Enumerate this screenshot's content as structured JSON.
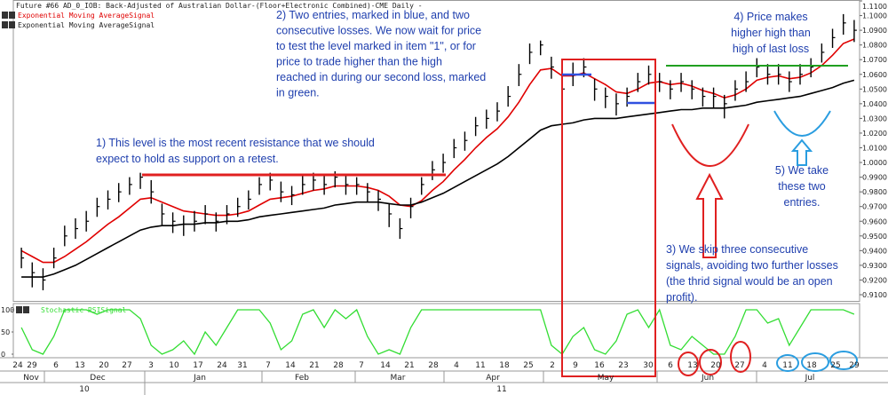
{
  "chart_data": [
    {
      "type": "ohlc",
      "title": "Future #66 AD_0_IOB: Back-Adjusted of Australian Dollar-(Floor+Electronic Combined)-CME Daily -",
      "color": "#000000",
      "high": [
        0.942,
        0.932,
        0.928,
        0.942,
        0.957,
        0.962,
        0.967,
        0.976,
        0.981,
        0.986,
        0.99,
        0.993,
        0.988,
        0.972,
        0.966,
        0.964,
        0.967,
        0.971,
        0.966,
        0.971,
        0.976,
        0.981,
        0.99,
        0.993,
        0.987,
        0.984,
        0.991,
        0.993,
        0.991,
        0.994,
        0.991,
        0.99,
        0.986,
        0.981,
        0.972,
        0.962,
        0.976,
        0.99,
        1.001,
        1.006,
        1.016,
        1.021,
        1.031,
        1.036,
        1.041,
        1.052,
        1.067,
        1.081,
        1.083,
        1.072,
        1.058,
        1.068,
        1.071,
        1.057,
        1.051,
        1.047,
        1.051,
        1.061,
        1.066,
        1.061,
        1.056,
        1.061,
        1.056,
        1.051,
        1.051,
        1.046,
        1.056,
        1.062,
        1.071,
        1.067,
        1.067,
        1.062,
        1.067,
        1.071,
        1.081,
        1.091,
        1.101,
        1.097
      ],
      "low": [
        0.928,
        0.915,
        0.913,
        0.928,
        0.943,
        0.948,
        0.953,
        0.963,
        0.968,
        0.973,
        0.978,
        0.982,
        0.972,
        0.957,
        0.952,
        0.95,
        0.953,
        0.958,
        0.953,
        0.958,
        0.963,
        0.968,
        0.978,
        0.981,
        0.973,
        0.971,
        0.978,
        0.981,
        0.978,
        0.983,
        0.978,
        0.978,
        0.973,
        0.967,
        0.956,
        0.948,
        0.962,
        0.978,
        0.988,
        0.993,
        1.003,
        1.008,
        1.018,
        1.023,
        1.028,
        1.038,
        1.052,
        1.067,
        1.073,
        1.057,
        1.042,
        1.052,
        1.058,
        1.042,
        1.037,
        1.032,
        1.038,
        1.048,
        1.053,
        1.048,
        1.043,
        1.048,
        1.043,
        1.038,
        1.037,
        1.03,
        1.042,
        1.048,
        1.058,
        1.053,
        1.053,
        1.048,
        1.053,
        1.058,
        1.068,
        1.078,
        1.087,
        1.082
      ],
      "close": [
        0.935,
        0.925,
        0.92,
        0.935,
        0.95,
        0.955,
        0.96,
        0.97,
        0.975,
        0.98,
        0.985,
        0.99,
        0.98,
        0.965,
        0.96,
        0.958,
        0.96,
        0.965,
        0.96,
        0.965,
        0.97,
        0.975,
        0.985,
        0.988,
        0.98,
        0.978,
        0.985,
        0.988,
        0.985,
        0.99,
        0.985,
        0.985,
        0.98,
        0.975,
        0.965,
        0.955,
        0.97,
        0.985,
        0.995,
        1.0,
        1.01,
        1.015,
        1.025,
        1.03,
        1.035,
        1.045,
        1.06,
        1.075,
        1.08,
        1.065,
        1.05,
        1.06,
        1.065,
        1.05,
        1.045,
        1.04,
        1.045,
        1.055,
        1.06,
        1.055,
        1.05,
        1.055,
        1.05,
        1.045,
        1.045,
        1.04,
        1.05,
        1.055,
        1.065,
        1.06,
        1.06,
        1.055,
        1.06,
        1.065,
        1.075,
        1.085,
        1.095,
        1.09
      ],
      "series": [
        {
          "name": "Exponential Moving AverageSignal",
          "color": "#e00000",
          "values": [
            0.94,
            0.936,
            0.932,
            0.932,
            0.936,
            0.941,
            0.946,
            0.952,
            0.958,
            0.963,
            0.969,
            0.975,
            0.976,
            0.973,
            0.97,
            0.967,
            0.966,
            0.965,
            0.964,
            0.964,
            0.965,
            0.967,
            0.971,
            0.975,
            0.976,
            0.977,
            0.979,
            0.981,
            0.982,
            0.984,
            0.984,
            0.984,
            0.983,
            0.981,
            0.977,
            0.971,
            0.97,
            0.974,
            0.981,
            0.987,
            0.995,
            1.002,
            1.01,
            1.017,
            1.023,
            1.031,
            1.041,
            1.053,
            1.063,
            1.064,
            1.059,
            1.059,
            1.061,
            1.057,
            1.053,
            1.048,
            1.047,
            1.05,
            1.054,
            1.055,
            1.053,
            1.054,
            1.052,
            1.049,
            1.047,
            1.044,
            1.046,
            1.05,
            1.056,
            1.058,
            1.059,
            1.057,
            1.058,
            1.061,
            1.066,
            1.073,
            1.081,
            1.084
          ]
        },
        {
          "name": "Exponential Moving AverageSignal",
          "color": "#000000",
          "values": [
            0.922,
            0.922,
            0.922,
            0.924,
            0.927,
            0.93,
            0.934,
            0.938,
            0.942,
            0.946,
            0.95,
            0.954,
            0.956,
            0.957,
            0.957,
            0.958,
            0.958,
            0.959,
            0.959,
            0.96,
            0.96,
            0.961,
            0.963,
            0.964,
            0.965,
            0.966,
            0.967,
            0.968,
            0.969,
            0.971,
            0.972,
            0.973,
            0.973,
            0.973,
            0.972,
            0.971,
            0.971,
            0.973,
            0.976,
            0.979,
            0.983,
            0.987,
            0.991,
            0.995,
            0.999,
            1.004,
            1.01,
            1.016,
            1.022,
            1.025,
            1.026,
            1.027,
            1.029,
            1.03,
            1.03,
            1.03,
            1.031,
            1.032,
            1.033,
            1.034,
            1.035,
            1.036,
            1.036,
            1.037,
            1.037,
            1.037,
            1.038,
            1.039,
            1.041,
            1.042,
            1.043,
            1.044,
            1.045,
            1.047,
            1.049,
            1.051,
            1.054,
            1.056
          ]
        }
      ],
      "ylim": [
        0.91,
        1.11
      ],
      "yticks": [
        {
          "value": 1.11,
          "label": "1.1100"
        },
        {
          "value": 1.1,
          "label": "1.1000"
        },
        {
          "value": 1.09,
          "label": "1.0900"
        },
        {
          "value": 1.08,
          "label": "1.0800"
        },
        {
          "value": 1.07,
          "label": "1.0700"
        },
        {
          "value": 1.06,
          "label": "1.0600"
        },
        {
          "value": 1.05,
          "label": "1.0500"
        },
        {
          "value": 1.04,
          "label": "1.0400"
        },
        {
          "value": 1.03,
          "label": "1.0300"
        },
        {
          "value": 1.02,
          "label": "1.0200"
        },
        {
          "value": 1.01,
          "label": "1.0100"
        },
        {
          "value": 1.0,
          "label": "1.0000"
        },
        {
          "value": 0.99,
          "label": "0.9900"
        },
        {
          "value": 0.98,
          "label": "0.9800"
        },
        {
          "value": 0.97,
          "label": "0.9700"
        },
        {
          "value": 0.96,
          "label": "0.9600"
        },
        {
          "value": 0.95,
          "label": "0.9500"
        },
        {
          "value": 0.94,
          "label": "0.9400"
        },
        {
          "value": 0.93,
          "label": "0.9300"
        },
        {
          "value": 0.92,
          "label": "0.9200"
        },
        {
          "value": 0.91,
          "label": "0.9100"
        }
      ]
    },
    {
      "type": "line",
      "series": [
        {
          "name": "Stochastic RSISignal",
          "color": "#33dd33",
          "values": [
            60,
            10,
            0,
            40,
            100,
            100,
            100,
            90,
            100,
            100,
            100,
            80,
            20,
            0,
            10,
            30,
            0,
            50,
            20,
            60,
            100,
            100,
            100,
            70,
            10,
            30,
            90,
            100,
            60,
            100,
            80,
            100,
            40,
            0,
            10,
            0,
            60,
            100,
            100,
            100,
            100,
            100,
            100,
            100,
            100,
            100,
            100,
            100,
            100,
            20,
            0,
            40,
            60,
            10,
            0,
            30,
            90,
            100,
            60,
            100,
            20,
            10,
            40,
            20,
            0,
            0,
            40,
            100,
            100,
            70,
            80,
            20,
            60,
            100,
            100,
            100,
            100,
            90
          ]
        }
      ],
      "ylim": [
        0,
        100
      ],
      "yticks": [
        0,
        50,
        100
      ],
      "x_labels": [
        "24",
        "29",
        "6",
        "13",
        "20",
        "27",
        "3",
        "10",
        "17",
        "24",
        "31",
        "7",
        "14",
        "21",
        "28",
        "7",
        "14",
        "21",
        "28",
        "4",
        "11",
        "18",
        "25",
        "2",
        "9",
        "16",
        "23",
        "30",
        "6",
        "13",
        "20",
        "27",
        "4",
        "11",
        "18",
        "25",
        "29"
      ],
      "months": [
        "Nov",
        "Dec",
        "Jan",
        "Feb",
        "Mar",
        "Apr",
        "May",
        "Jun",
        "Jul"
      ],
      "years": [
        "10",
        "11"
      ]
    }
  ],
  "annotations": [
    [
      "1) This level is the most recent resistance that we should",
      "expect to hold as support on a retest."
    ],
    [
      "2) Two entries, marked in blue, and two",
      "consecutive losses.  We now wait for price",
      "to test the level marked in item \"1\", or for",
      "price to trade higher than the high",
      "reached in during our second loss, marked",
      "in green."
    ],
    [
      "3) We skip three consecutive",
      "signals,  avoiding two further losses",
      "(the thrid signal would be an open",
      "profit)."
    ],
    [
      "4) Price makes",
      "higher high than",
      "high of last loss"
    ],
    [
      "5) We take",
      "these two",
      "entries."
    ]
  ]
}
